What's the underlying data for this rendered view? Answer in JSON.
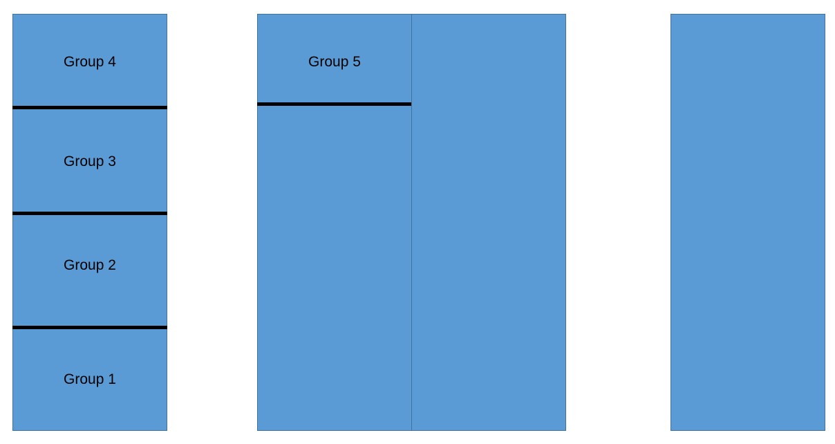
{
  "colors": {
    "block_fill": "#5b9bd5",
    "block_border": "#41719c",
    "divider": "#000000",
    "text": "#000000"
  },
  "column1": {
    "groups": [
      {
        "label": "Group 4"
      },
      {
        "label": "Group 3"
      },
      {
        "label": "Group 2"
      },
      {
        "label": "Group 1"
      }
    ]
  },
  "column2": {
    "groups": [
      {
        "label": "Group 5"
      }
    ]
  }
}
